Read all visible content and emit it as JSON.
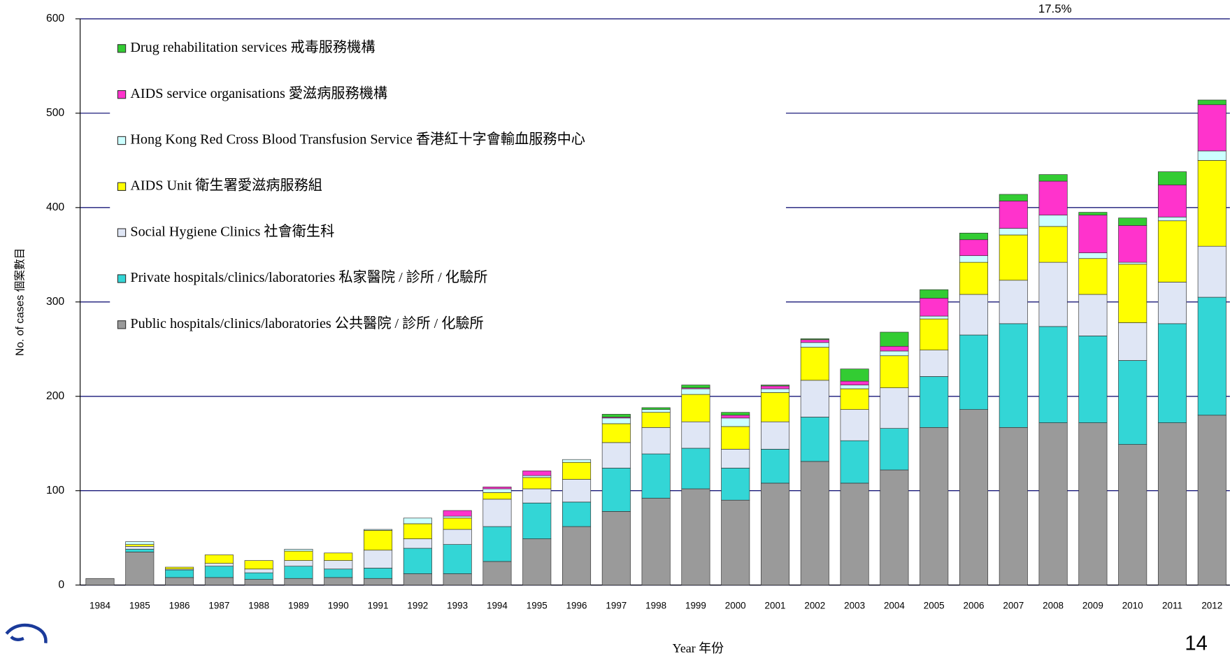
{
  "chart_data": {
    "type": "stacked_bar",
    "annotation": "17.5%",
    "xlabel": "Year 年份",
    "ylabel": "No. of cases 個案數目",
    "categories": [
      "1984",
      "1985",
      "1986",
      "1987",
      "1988",
      "1989",
      "1990",
      "1991",
      "1992",
      "1993",
      "1994",
      "1995",
      "1996",
      "1997",
      "1998",
      "1999",
      "2000",
      "2001",
      "2002",
      "2003",
      "2004",
      "2005",
      "2006",
      "2007",
      "2008",
      "2009",
      "2010",
      "2011",
      "2012"
    ],
    "series": [
      {
        "name": "Public hospitals/clinics/laboratories 公共醫院 / 診所 / 化驗所",
        "color": "#9a9a9a",
        "values": [
          7,
          35,
          8,
          8,
          6,
          7,
          8,
          7,
          12,
          12,
          25,
          49,
          62,
          78,
          92,
          102,
          90,
          108,
          131,
          108,
          122,
          167,
          186,
          167,
          172,
          172,
          149,
          172,
          180
        ]
      },
      {
        "name": "Private hospitals/clinics/laboratories 私家醫院 / 診所 / 化驗所",
        "color": "#33d6d6",
        "values": [
          0,
          3,
          8,
          12,
          7,
          13,
          9,
          11,
          27,
          31,
          37,
          38,
          26,
          46,
          47,
          43,
          34,
          36,
          47,
          45,
          44,
          54,
          79,
          110,
          102,
          92,
          89,
          105,
          125
        ]
      },
      {
        "name": "Social Hygiene Clinics 社會衛生科",
        "color": "#dfe6f5",
        "values": [
          0,
          3,
          1,
          3,
          4,
          6,
          9,
          19,
          10,
          16,
          29,
          15,
          24,
          27,
          28,
          28,
          20,
          29,
          39,
          33,
          43,
          28,
          43,
          46,
          68,
          44,
          40,
          44,
          54
        ]
      },
      {
        "name": "AIDS Unit 衛生署愛滋病服務組",
        "color": "#ffff00",
        "values": [
          0,
          2,
          2,
          9,
          9,
          10,
          8,
          21,
          16,
          12,
          7,
          12,
          18,
          20,
          16,
          29,
          24,
          31,
          35,
          22,
          34,
          33,
          34,
          48,
          38,
          38,
          62,
          65,
          91
        ]
      },
      {
        "name": "Hong Kong Red Cross Blood Transfusion Service 香港紅十字會輸血服務中心",
        "color": "#ccffff",
        "values": [
          0,
          3,
          0,
          0,
          0,
          2,
          0,
          1,
          6,
          2,
          4,
          2,
          3,
          6,
          3,
          6,
          9,
          4,
          5,
          4,
          5,
          3,
          7,
          7,
          12,
          6,
          2,
          4,
          10
        ]
      },
      {
        "name": "AIDS service organisations 愛滋病服務機構",
        "color": "#ff33cc",
        "values": [
          0,
          0,
          0,
          0,
          0,
          0,
          0,
          0,
          0,
          6,
          2,
          5,
          0,
          1,
          0,
          1,
          3,
          3,
          3,
          4,
          5,
          19,
          17,
          29,
          36,
          40,
          39,
          34,
          49
        ]
      },
      {
        "name": "Drug rehabilitation services 戒毒服務機構",
        "color": "#33cc33",
        "values": [
          0,
          0,
          0,
          0,
          0,
          0,
          0,
          0,
          0,
          0,
          0,
          0,
          0,
          3,
          2,
          3,
          3,
          1,
          1,
          13,
          15,
          9,
          7,
          7,
          7,
          3,
          8,
          14,
          5
        ]
      }
    ],
    "ylim": [
      0,
      600
    ],
    "yticks": [
      0,
      100,
      200,
      300,
      400,
      500,
      600
    ],
    "grid": true
  },
  "page_number": "14"
}
